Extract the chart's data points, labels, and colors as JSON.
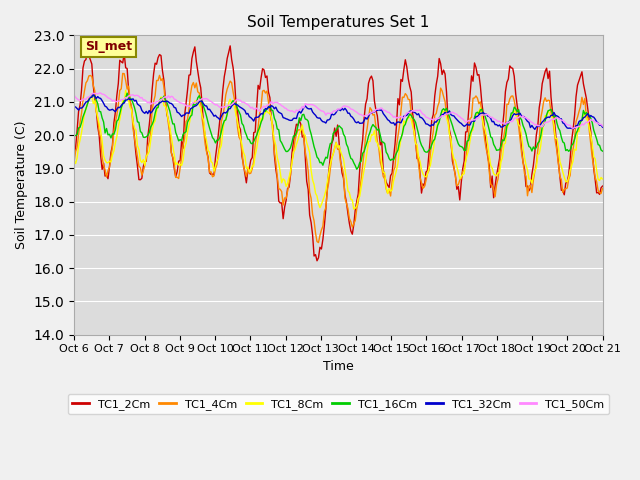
{
  "title": "Soil Temperatures Set 1",
  "xlabel": "Time",
  "ylabel": "Soil Temperature (C)",
  "ylim": [
    14.0,
    23.0
  ],
  "yticks": [
    14.0,
    15.0,
    16.0,
    17.0,
    18.0,
    19.0,
    20.0,
    21.0,
    22.0,
    23.0
  ],
  "annotation": "SI_met",
  "bg_color": "#e8e8e8",
  "plot_bg": "#dcdcdc",
  "series_colors": {
    "TC1_2Cm": "#cc0000",
    "TC1_4Cm": "#ff8800",
    "TC1_8Cm": "#ffff00",
    "TC1_16Cm": "#00cc00",
    "TC1_32Cm": "#0000cc",
    "TC1_50Cm": "#ff88ff"
  },
  "xtick_labels": [
    "Oct 6",
    "Oct 7",
    "Oct 8",
    "Oct 9",
    "Oct 10",
    "Oct 11",
    "Oct 12",
    "Oct 13",
    "Oct 14",
    "Oct 15",
    "Oct 16",
    "Oct 17",
    "Oct 18",
    "Oct 19",
    "Oct 20",
    "Oct 21"
  ],
  "n_points": 360
}
